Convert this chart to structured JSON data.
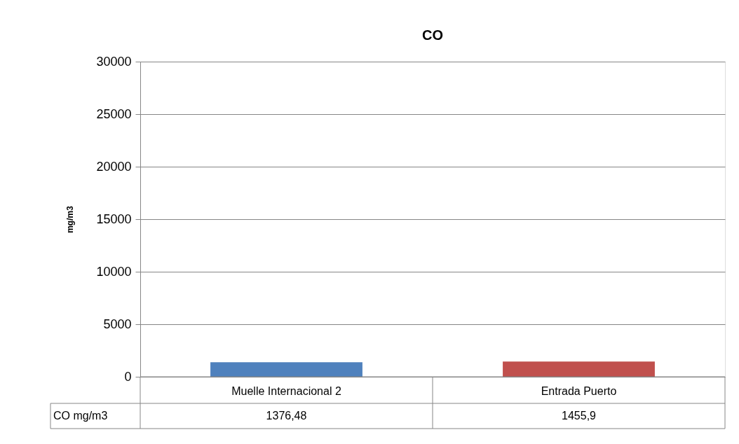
{
  "chart_data": {
    "type": "bar",
    "title": "CO",
    "ylabel": "mg/m3",
    "categories": [
      "Muelle Internacional 2",
      "Entrada Puerto"
    ],
    "series": [
      {
        "name": "CO mg/m3",
        "colors": [
          "#4f81bd",
          "#c0504d"
        ],
        "values": [
          1376.48,
          1455.9
        ],
        "value_labels": [
          "1376,48",
          "1455,9"
        ]
      }
    ],
    "ylim": [
      0,
      30000
    ],
    "yticks": [
      0,
      5000,
      10000,
      15000,
      20000,
      25000,
      30000
    ],
    "grid": "y"
  }
}
